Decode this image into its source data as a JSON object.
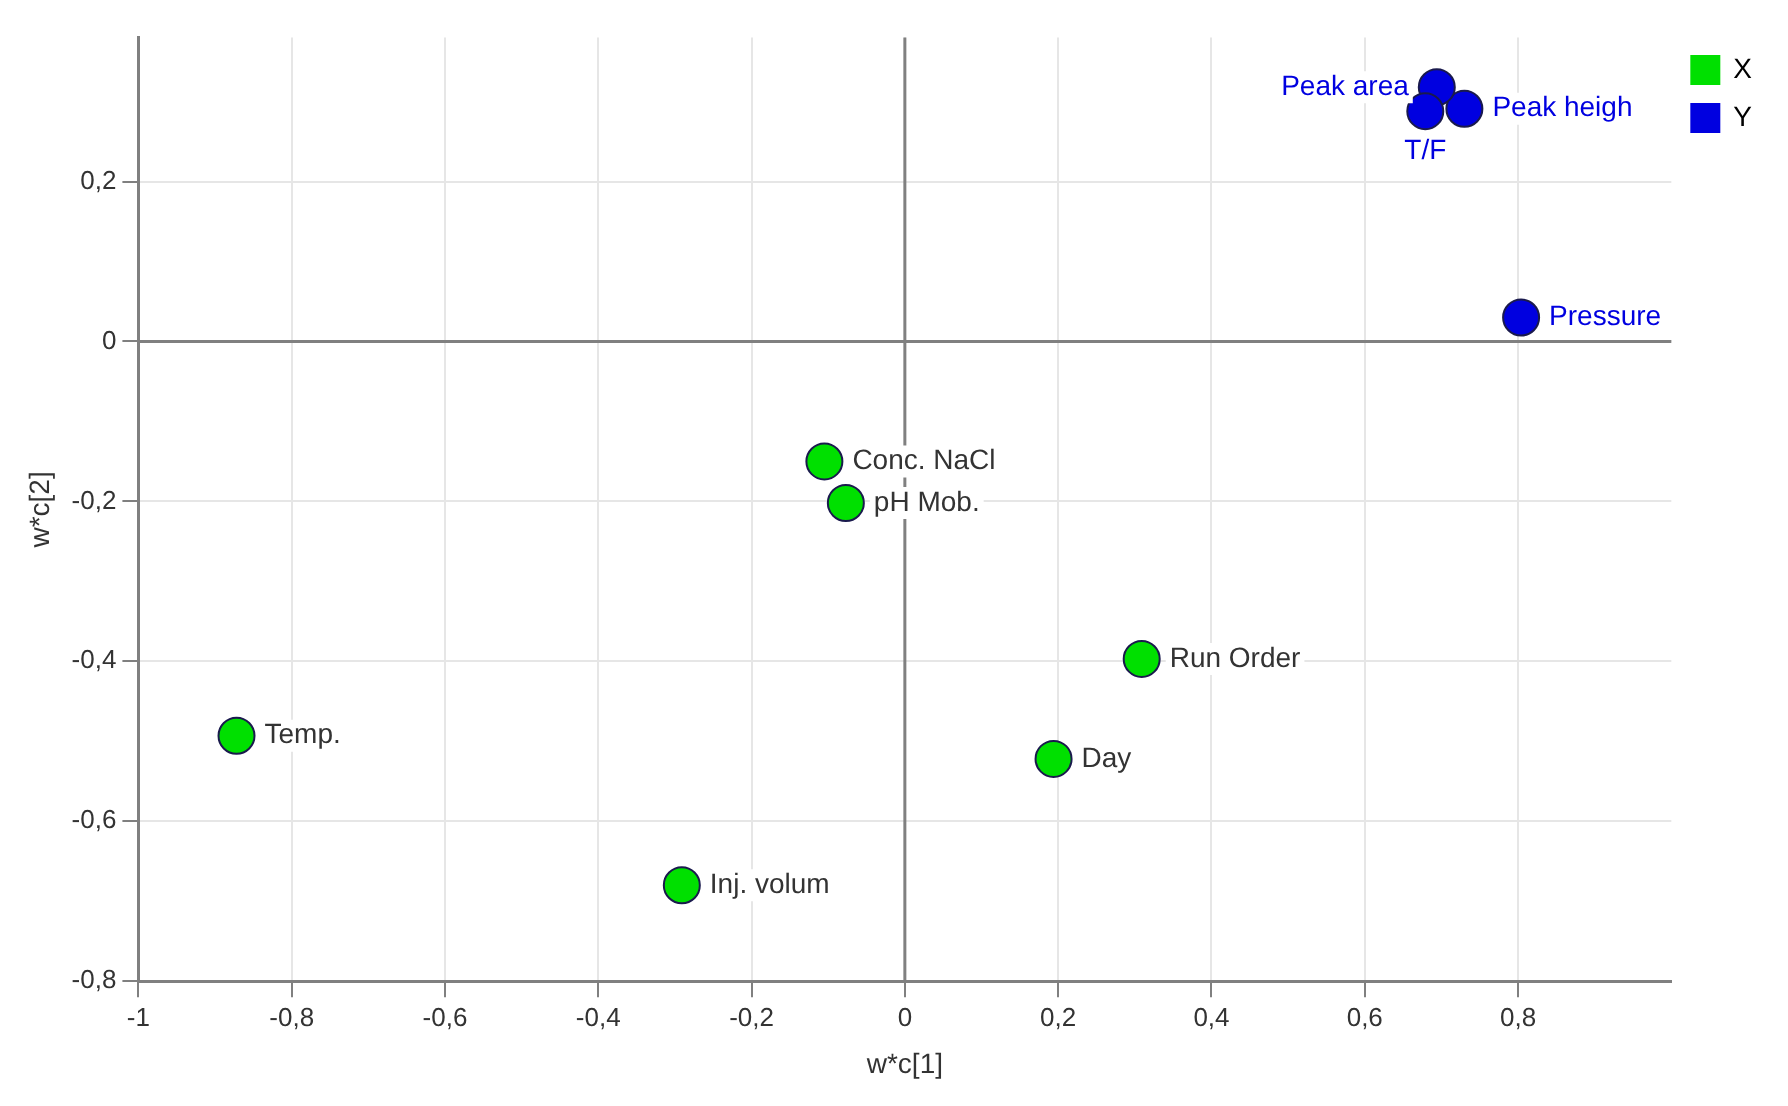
{
  "chart_data": {
    "type": "scatter",
    "xlabel": "w*c[1]",
    "ylabel": "w*c[2]",
    "xlim": [
      -1,
      1
    ],
    "ylim": [
      -0.8,
      0.38
    ],
    "xticks": [
      -1,
      {
        "value": -0.8,
        "label": "-0,8"
      },
      {
        "value": -0.6,
        "label": "-0,6"
      },
      {
        "value": -0.4,
        "label": "-0,4"
      },
      {
        "value": -0.2,
        "label": "-0,2"
      },
      0,
      {
        "value": 0.2,
        "label": "0,2"
      },
      {
        "value": 0.4,
        "label": "0,4"
      },
      {
        "value": 0.6,
        "label": "0,6"
      },
      {
        "value": 0.8,
        "label": "0,8"
      }
    ],
    "yticks": [
      {
        "value": -0.8,
        "label": "-0,8"
      },
      {
        "value": -0.6,
        "label": "-0,6"
      },
      {
        "value": -0.4,
        "label": "-0,4"
      },
      {
        "value": -0.2,
        "label": "-0,2"
      },
      0,
      {
        "value": 0.2,
        "label": "0,2"
      }
    ],
    "grid": true,
    "legend": "top right",
    "marker": "circle",
    "series": [
      {
        "name": "X",
        "color": "#00e000",
        "x": [
          -0.105,
          -0.077,
          0.309,
          0.194,
          -0.872,
          -0.291
        ],
        "values": [
          -0.15,
          -0.202,
          -0.397,
          -0.522,
          -0.493,
          -0.68
        ]
      },
      {
        "name": "Y",
        "color": "#0000e0",
        "x": [
          0.73,
          0.694,
          0.679,
          0.804
        ],
        "values": [
          0.291,
          0.318,
          0.288,
          0.03
        ]
      }
    ],
    "annotations": [
      {
        "text": "Conc. NaCl",
        "x": -0.105,
        "y": -0.15
      },
      {
        "text": "pH Mob.",
        "x": -0.077,
        "y": -0.202
      },
      {
        "text": "Run Order",
        "x": 0.309,
        "y": -0.397
      },
      {
        "text": "Day",
        "x": 0.194,
        "y": -0.522
      },
      {
        "text": "Temp.",
        "x": -0.872,
        "y": -0.493
      },
      {
        "text": "Inj. volum",
        "x": -0.291,
        "y": -0.68
      },
      {
        "text": "Peak heigh",
        "x": 0.73,
        "y": 0.291
      },
      {
        "text": "Peak area",
        "x": 0.694,
        "y": 0.318
      },
      {
        "text": "T/F",
        "x": 0.679,
        "y": 0.288
      },
      {
        "text": "Pressure",
        "x": 0.804,
        "y": 0.03
      }
    ]
  }
}
